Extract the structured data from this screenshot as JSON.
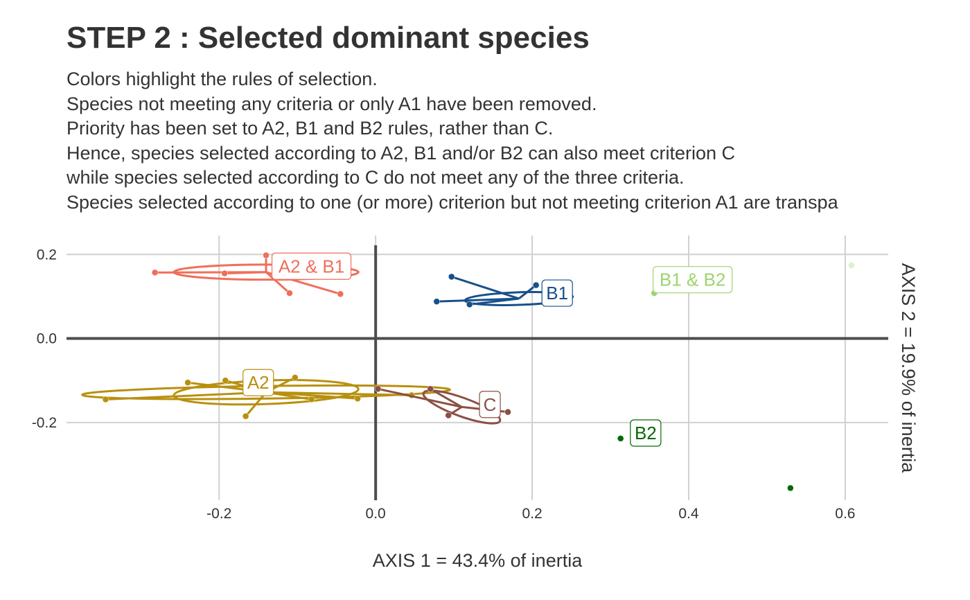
{
  "chart_data": {
    "type": "scatter",
    "title": "STEP 2 : Selected dominant species",
    "subtitle": [
      "Colors highlight the rules of selection.",
      "Species not meeting any criteria or only A1 have been removed.",
      "Priority has been set to A2, B1 and B2 rules, rather than C.",
      "Hence, species selected according to A2, B1 and/or B2 can also meet criterion C",
      "while species selected according to C do not meet any of the three criteria.",
      "Species selected according to one (or more) criterion but not meeting criterion A1 are transpa"
    ],
    "xlabel": "AXIS 1 = 43.4% of inertia",
    "ylabel": "AXIS 2 = 19.9% of inertia",
    "xlim": [
      -0.395,
      0.655
    ],
    "ylim": [
      -0.385,
      0.245
    ],
    "xticks": [
      -0.2,
      0.0,
      0.2,
      0.4,
      0.6
    ],
    "yticks": [
      -0.2,
      0.0,
      0.2
    ],
    "xtick_labels": [
      "-0.2",
      "0.0",
      "0.2",
      "0.4",
      "0.6"
    ],
    "ytick_labels": [
      "-0.2",
      "0.0",
      "0.2"
    ],
    "grid": true,
    "legend": "none",
    "groups": [
      {
        "name": "A2 & B1",
        "color": "#ef6f5a",
        "center": [
          -0.14,
          0.158
        ],
        "ellipse": {
          "rx": 0.118,
          "ry": 0.018,
          "angle": 0
        },
        "points": [
          [
            -0.282,
            0.157
          ],
          [
            -0.193,
            0.155
          ],
          [
            -0.11,
            0.108
          ],
          [
            -0.045,
            0.106
          ],
          [
            -0.14,
            0.198
          ]
        ],
        "label_pos": [
          -0.082,
          0.172
        ]
      },
      {
        "name": "B1",
        "color": "#17508a",
        "center": [
          0.183,
          0.095
        ],
        "ellipse": {
          "rx": 0.069,
          "ry": 0.015,
          "angle": -2
        },
        "points": [
          [
            0.097,
            0.147
          ],
          [
            0.078,
            0.088
          ],
          [
            0.12,
            0.081
          ],
          [
            0.205,
            0.127
          ]
        ],
        "label_pos": [
          0.232,
          0.108
        ]
      },
      {
        "name": "B1 & B2",
        "color": "#9dd36d",
        "center": [
          0.356,
          0.108
        ],
        "ellipse": null,
        "points": [
          [
            0.356,
            0.108
          ],
          [
            0.608,
            0.174
          ]
        ],
        "point_opacity": [
          1.0,
          0.35
        ],
        "label_pos": [
          0.405,
          0.14
        ]
      },
      {
        "name": "A2",
        "color": "#b8900f",
        "center": [
          -0.14,
          -0.128
        ],
        "ellipse": {
          "rx": 0.235,
          "ry": 0.015,
          "angle": -0.8,
          "extra": [
            {
              "rx": 0.118,
              "ry": 0.028,
              "angle": -2
            }
          ]
        },
        "points": [
          [
            -0.345,
            -0.145
          ],
          [
            -0.24,
            -0.105
          ],
          [
            -0.192,
            -0.1
          ],
          [
            -0.166,
            -0.185
          ],
          [
            -0.103,
            -0.093
          ],
          [
            -0.082,
            -0.145
          ],
          [
            -0.023,
            -0.143
          ],
          [
            0.046,
            -0.135
          ]
        ],
        "label_pos": [
          -0.15,
          -0.105
        ]
      },
      {
        "name": "C",
        "color": "#8b5045",
        "center": [
          0.11,
          -0.163
        ],
        "ellipse": {
          "rx": 0.052,
          "ry": 0.022,
          "angle": 20
        },
        "points": [
          [
            0.003,
            -0.12
          ],
          [
            0.07,
            -0.12
          ],
          [
            0.093,
            -0.183
          ],
          [
            0.169,
            -0.175
          ]
        ],
        "label_pos": [
          0.146,
          -0.157
        ]
      },
      {
        "name": "B2",
        "color": "#036903",
        "center": [
          0.313,
          -0.238
        ],
        "ellipse": null,
        "points": [
          [
            0.313,
            -0.238
          ],
          [
            0.53,
            -0.356
          ]
        ],
        "label_pos": [
          0.345,
          -0.225
        ]
      }
    ]
  }
}
